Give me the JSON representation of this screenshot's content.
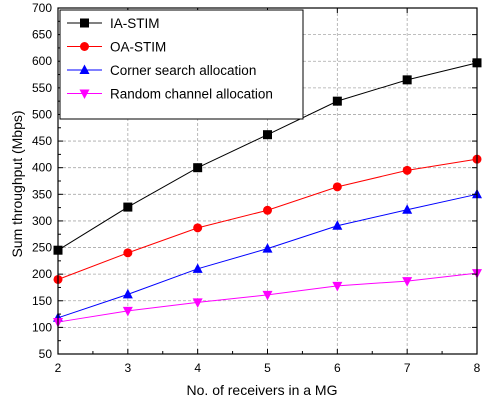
{
  "chart_data": {
    "type": "line",
    "title": "",
    "xlabel": "No. of receivers in a MG",
    "ylabel": "Sum throughput (Mbps)",
    "x": [
      2,
      3,
      4,
      5,
      6,
      7,
      8
    ],
    "xlim": [
      2,
      8
    ],
    "ylim": [
      50,
      700
    ],
    "xticks": [
      2,
      3,
      4,
      5,
      6,
      7,
      8
    ],
    "yticks": [
      50,
      100,
      150,
      200,
      250,
      300,
      350,
      400,
      450,
      500,
      550,
      600,
      650,
      700
    ],
    "grid": true,
    "legend_position": "top-left",
    "series": [
      {
        "name": "IA-STIM",
        "color": "#000000",
        "marker": "square",
        "values": [
          245,
          326,
          400,
          462,
          525,
          565,
          597
        ]
      },
      {
        "name": "OA-STIM",
        "color": "#ff0000",
        "marker": "circle",
        "values": [
          190,
          240,
          287,
          320,
          364,
          395,
          416
        ]
      },
      {
        "name": "Corner search allocation",
        "color": "#0000ff",
        "marker": "triangle-up",
        "values": [
          118,
          162,
          210,
          248,
          291,
          321,
          350
        ]
      },
      {
        "name": "Random channel allocation",
        "color": "#ff00ff",
        "marker": "triangle-down",
        "values": [
          110,
          131,
          147,
          161,
          178,
          187,
          202
        ]
      }
    ]
  }
}
